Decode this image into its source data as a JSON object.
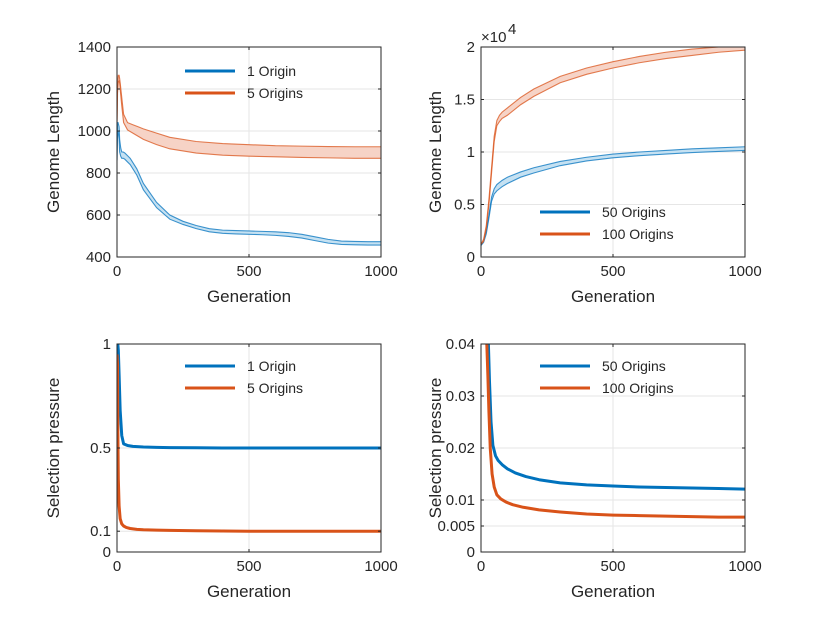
{
  "colors": {
    "blue": "#0072BD",
    "orange": "#D95319",
    "blue_band": "#C5E1F2",
    "orange_band": "#F6D3C6",
    "axis": "#262626",
    "grid": "#E6E6E6"
  },
  "chart_data": [
    {
      "id": "genome-length-small",
      "type": "line",
      "xlabel": "Generation",
      "ylabel": "Genome Length",
      "xlim": [
        0,
        1000
      ],
      "ylim": [
        400,
        1400
      ],
      "xticks": [
        0,
        500,
        1000
      ],
      "xtick_labels": [
        "0",
        "500",
        "1000"
      ],
      "yticks": [
        400,
        600,
        800,
        1000,
        1200,
        1400
      ],
      "ytick_labels": [
        "400",
        "600",
        "800",
        "1000",
        "1200",
        "1400"
      ],
      "exponent_label": "",
      "legend_position": "top-center",
      "grid": true,
      "series": [
        {
          "name": "1 Origin",
          "color": "blue",
          "band_color": "blue_band",
          "band": true,
          "x": [
            0,
            2,
            4,
            8,
            10,
            14,
            18,
            24,
            30,
            50,
            75,
            100,
            150,
            200,
            250,
            300,
            350,
            400,
            450,
            500,
            550,
            600,
            650,
            700,
            750,
            800,
            850,
            900,
            950,
            1000
          ],
          "upper": [
            860,
            1040,
            1040,
            1020,
            960,
            920,
            900,
            900,
            895,
            870,
            820,
            750,
            660,
            600,
            570,
            550,
            535,
            528,
            526,
            524,
            522,
            520,
            516,
            508,
            496,
            484,
            476,
            474,
            473,
            473
          ],
          "lower": [
            860,
            1000,
            1000,
            960,
            900,
            880,
            870,
            870,
            865,
            840,
            790,
            720,
            635,
            580,
            555,
            535,
            520,
            513,
            510,
            508,
            506,
            503,
            498,
            490,
            478,
            466,
            460,
            458,
            457,
            457
          ]
        },
        {
          "name": "5 Origins",
          "color": "orange",
          "band_color": "orange_band",
          "band": true,
          "x": [
            0,
            1,
            2,
            5,
            8,
            10,
            12,
            18,
            25,
            40,
            60,
            80,
            100,
            150,
            200,
            300,
            400,
            500,
            600,
            700,
            800,
            900,
            1000
          ],
          "upper": [
            1040,
            1140,
            1220,
            1265,
            1265,
            1250,
            1230,
            1160,
            1080,
            1040,
            1030,
            1020,
            1010,
            990,
            970,
            950,
            940,
            935,
            930,
            928,
            926,
            925,
            925
          ],
          "lower": [
            1040,
            1100,
            1180,
            1235,
            1238,
            1228,
            1200,
            1120,
            1040,
            1005,
            990,
            975,
            960,
            935,
            915,
            895,
            885,
            880,
            877,
            874,
            872,
            870,
            870
          ]
        }
      ]
    },
    {
      "id": "genome-length-large",
      "type": "line",
      "xlabel": "Generation",
      "ylabel": "Genome Length",
      "xlim": [
        0,
        1000
      ],
      "ylim": [
        0,
        20000
      ],
      "xticks": [
        0,
        500,
        1000
      ],
      "xtick_labels": [
        "0",
        "500",
        "1000"
      ],
      "yticks": [
        0,
        5000,
        10000,
        15000,
        20000
      ],
      "ytick_labels": [
        "0",
        "0.5",
        "1",
        "1.5",
        "2"
      ],
      "exponent_label": "×10",
      "exponent_power": "4",
      "legend_position": "lower-center",
      "grid": true,
      "series": [
        {
          "name": "50 Origins",
          "color": "blue",
          "band_color": "blue_band",
          "band": true,
          "x": [
            0,
            10,
            20,
            30,
            40,
            50,
            60,
            70,
            80,
            100,
            150,
            200,
            300,
            400,
            500,
            600,
            700,
            800,
            900,
            1000
          ],
          "upper": [
            1100,
            1600,
            2500,
            4000,
            5700,
            6500,
            6900,
            7100,
            7300,
            7600,
            8100,
            8500,
            9100,
            9500,
            9800,
            10000,
            10150,
            10300,
            10400,
            10500
          ],
          "lower": [
            1100,
            1400,
            2200,
            3700,
            5300,
            6000,
            6300,
            6500,
            6700,
            7000,
            7600,
            8000,
            8700,
            9150,
            9450,
            9650,
            9800,
            9950,
            10050,
            10150
          ]
        },
        {
          "name": "100 Origins",
          "color": "orange",
          "band_color": "orange_band",
          "band": true,
          "x": [
            0,
            10,
            20,
            30,
            40,
            50,
            60,
            70,
            80,
            100,
            150,
            200,
            300,
            400,
            500,
            600,
            700,
            800,
            900,
            1000
          ],
          "upper": [
            1200,
            1700,
            3000,
            5500,
            8500,
            11500,
            13000,
            13500,
            13800,
            14200,
            15200,
            16000,
            17200,
            18000,
            18600,
            19100,
            19500,
            19800,
            20000,
            20200
          ],
          "lower": [
            1200,
            1500,
            2700,
            5000,
            8000,
            11000,
            12500,
            12900,
            13200,
            13500,
            14500,
            15300,
            16600,
            17400,
            18000,
            18500,
            18900,
            19200,
            19500,
            19700
          ]
        }
      ]
    },
    {
      "id": "selection-pressure-small",
      "type": "line",
      "xlabel": "Generation",
      "ylabel": "Selection pressure",
      "xlim": [
        0,
        1000
      ],
      "ylim": [
        0,
        1
      ],
      "xticks": [
        0,
        500,
        1000
      ],
      "xtick_labels": [
        "0",
        "500",
        "1000"
      ],
      "yticks": [
        0,
        0.1,
        0.5,
        1
      ],
      "ytick_labels": [
        "0",
        "0.1",
        "0.5",
        "1"
      ],
      "exponent_label": "",
      "legend_position": "top-center",
      "grid": true,
      "series": [
        {
          "name": "1 Origin",
          "color": "blue",
          "band": false,
          "x": [
            3,
            5,
            8,
            12,
            18,
            25,
            40,
            60,
            100,
            150,
            200,
            300,
            400,
            500,
            600,
            700,
            800,
            900,
            1000
          ],
          "y": [
            1.0,
            0.97,
            0.85,
            0.68,
            0.56,
            0.52,
            0.512,
            0.508,
            0.505,
            0.503,
            0.502,
            0.501,
            0.5,
            0.5,
            0.5,
            0.5,
            0.5,
            0.5,
            0.5
          ]
        },
        {
          "name": "5 Origins",
          "color": "orange",
          "band": false,
          "x": [
            0,
            2,
            3,
            5,
            8,
            12,
            18,
            25,
            35,
            50,
            75,
            100,
            150,
            200,
            300,
            400,
            500,
            600,
            700,
            800,
            900,
            1000
          ],
          "y": [
            0.95,
            0.9,
            0.6,
            0.35,
            0.22,
            0.16,
            0.135,
            0.125,
            0.118,
            0.113,
            0.109,
            0.107,
            0.105,
            0.104,
            0.102,
            0.101,
            0.1,
            0.1,
            0.1,
            0.1,
            0.1,
            0.1
          ]
        }
      ]
    },
    {
      "id": "selection-pressure-large",
      "type": "line",
      "xlabel": "Generation",
      "ylabel": "Selection pressure",
      "xlim": [
        0,
        1000
      ],
      "ylim": [
        0,
        0.04
      ],
      "xticks": [
        0,
        500,
        1000
      ],
      "xtick_labels": [
        "0",
        "500",
        "1000"
      ],
      "yticks": [
        0,
        0.005,
        0.01,
        0.02,
        0.03,
        0.04
      ],
      "ytick_labels": [
        "0",
        "0.005",
        "0.01",
        "0.02",
        "0.03",
        "0.04"
      ],
      "exponent_label": "",
      "legend_position": "top-center",
      "grid": true,
      "series": [
        {
          "name": "50 Origins",
          "color": "blue",
          "band": false,
          "x": [
            28,
            32,
            38,
            45,
            55,
            65,
            80,
            100,
            130,
            170,
            220,
            300,
            400,
            500,
            600,
            700,
            800,
            900,
            1000
          ],
          "y": [
            0.04,
            0.033,
            0.025,
            0.0205,
            0.0185,
            0.0176,
            0.0168,
            0.016,
            0.0152,
            0.0145,
            0.0139,
            0.0133,
            0.0129,
            0.0127,
            0.0125,
            0.0124,
            0.0123,
            0.0122,
            0.0121
          ]
        },
        {
          "name": "100 Origins",
          "color": "orange",
          "band": false,
          "x": [
            22,
            26,
            30,
            35,
            42,
            50,
            60,
            75,
            95,
            120,
            160,
            220,
            300,
            400,
            500,
            600,
            700,
            800,
            900,
            1000
          ],
          "y": [
            0.04,
            0.034,
            0.027,
            0.02,
            0.015,
            0.0125,
            0.011,
            0.0102,
            0.0096,
            0.0091,
            0.0086,
            0.0081,
            0.0077,
            0.0073,
            0.0071,
            0.007,
            0.0069,
            0.0068,
            0.0067,
            0.0067
          ]
        }
      ]
    }
  ]
}
